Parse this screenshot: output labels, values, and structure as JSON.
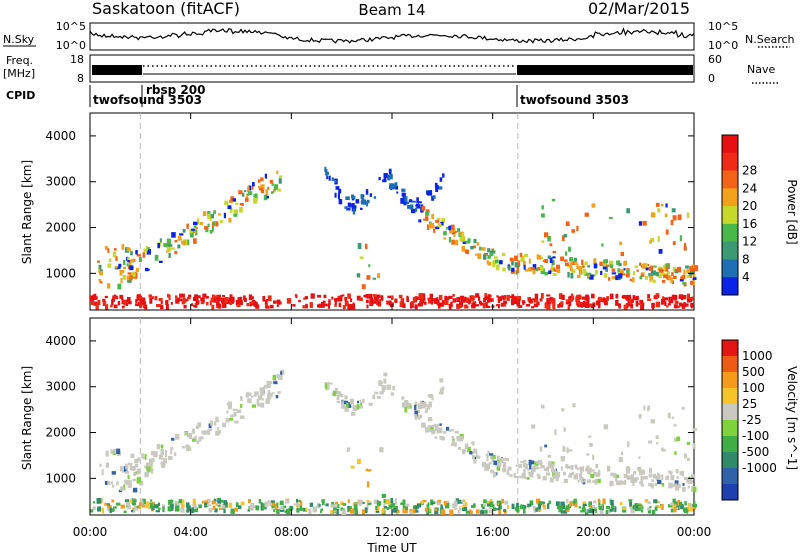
{
  "header": {
    "title": "Saskatoon (fitACF)",
    "beam": "Beam 14",
    "date": "02/Mar/2015"
  },
  "noise_panel": {
    "left_label": "N.Sky",
    "left_ticks": [
      "10^5",
      "10^0"
    ],
    "right_ticks": [
      "10^5",
      "10^0"
    ],
    "right_label": "N.Search",
    "right_legend_line": "dotted"
  },
  "freq_panel": {
    "left_label_line1": "Freq.",
    "left_label_line2": "[MHz]",
    "left_ticks": [
      "18",
      "8"
    ],
    "right_ticks": [
      "60",
      "0"
    ],
    "right_label": "Nave",
    "right_legend_line": "dotted"
  },
  "cpid_panel": {
    "label": "CPID",
    "segments": [
      {
        "name": "twofsound 3503",
        "start_h": 0,
        "end_h": 2
      },
      {
        "name": "rbsp 200",
        "start_h": 2,
        "end_h": 17
      },
      {
        "name": "twofsound 3503",
        "start_h": 17,
        "end_h": 24
      }
    ]
  },
  "x_axis": {
    "label": "Time UT",
    "ticks": [
      "00:00",
      "04:00",
      "08:00",
      "12:00",
      "16:00",
      "20:00",
      "00:00"
    ]
  },
  "chart_data": [
    {
      "type": "heatmap",
      "title": "",
      "ylabel": "Slant Range [km]",
      "xlabel": "",
      "x_range_hours": [
        0,
        24
      ],
      "ylim": [
        200,
        4500
      ],
      "y_ticks": [
        1000,
        2000,
        3000,
        4000
      ],
      "colorbar": {
        "label": "Power [dB]",
        "ticks": [
          "4",
          "8",
          "12",
          "16",
          "20",
          "24",
          "28"
        ],
        "colors": [
          "#0a23e6",
          "#1f6fb4",
          "#3b9a73",
          "#49b84a",
          "#c6d82a",
          "#f2a11a",
          "#f26318",
          "#ef2a16",
          "#e60f12"
        ]
      },
      "mode_boundaries_h": [
        2,
        17
      ],
      "features": [
        {
          "name": "near-range band",
          "time_h": [
            0,
            24
          ],
          "range_km": [
            250,
            550
          ],
          "level_db": 26
        },
        {
          "name": "ascending arc",
          "time_h": [
            0.5,
            7.6
          ],
          "range_km": [
            700,
            3200
          ],
          "level_db": 20
        },
        {
          "name": "mid-day arc",
          "time_h": [
            9.5,
            14
          ],
          "range_km": [
            2300,
            3400
          ],
          "level_db": 8
        },
        {
          "name": "descending trace",
          "time_h": [
            13.5,
            24
          ],
          "range_km": [
            900,
            2300
          ],
          "level_db": 24
        }
      ]
    },
    {
      "type": "heatmap",
      "title": "",
      "ylabel": "Slant Range [km]",
      "xlabel": "Time UT",
      "x_range_hours": [
        0,
        24
      ],
      "ylim": [
        200,
        4500
      ],
      "y_ticks": [
        1000,
        2000,
        3000,
        4000
      ],
      "colorbar": {
        "label": "Velocity [m s^-1]",
        "ticks": [
          "1000",
          "500",
          "100",
          "25",
          "-25",
          "-100",
          "-500",
          "-1000"
        ],
        "colors": [
          "#1e3fb0",
          "#2f62a8",
          "#2f8b6a",
          "#3fae45",
          "#7ed23a",
          "#c9c9c0",
          "#f5c32a",
          "#f59a1a",
          "#ee5b14",
          "#e31515"
        ]
      },
      "mode_boundaries_h": [
        2,
        17
      ],
      "features": [
        {
          "name": "ground scatter",
          "time_h": [
            0,
            24
          ],
          "range_km": [
            700,
            3300
          ],
          "velocity_ms": 0
        },
        {
          "name": "near-range ionospheric",
          "time_h": [
            0,
            8
          ],
          "range_km": [
            250,
            700
          ],
          "velocity_ms": 100
        },
        {
          "name": "negative velocity patches",
          "time_h": [
            10,
            14
          ],
          "range_km": [
            300,
            1500
          ],
          "velocity_ms": -300
        }
      ]
    }
  ]
}
